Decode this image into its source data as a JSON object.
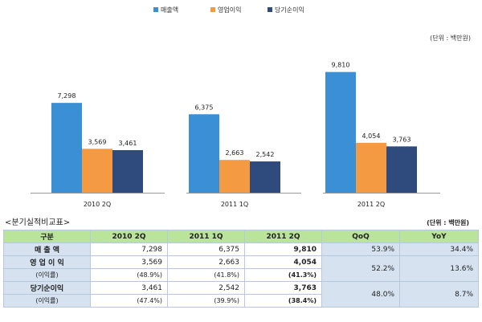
{
  "chart_data": {
    "type": "bar",
    "categories": [
      "2010 2Q",
      "2011 1Q",
      "2011 2Q"
    ],
    "series": [
      {
        "name": "매출액",
        "values": [
          7298,
          6375,
          9810
        ],
        "labels": [
          "7,298",
          "6,375",
          "9,810"
        ],
        "color": "#3b8fd4"
      },
      {
        "name": "영업이익",
        "values": [
          3569,
          2663,
          4054
        ],
        "labels": [
          "3,569",
          "2,663",
          "4,054"
        ],
        "color": "#f39a43"
      },
      {
        "name": "당기순이익",
        "values": [
          3461,
          2542,
          3763
        ],
        "labels": [
          "3,461",
          "2,542",
          "3,763"
        ],
        "color": "#2f4a7d"
      }
    ],
    "unit": "(단위 : 백만원)",
    "ylim": [
      0,
      10700
    ],
    "legend": "top"
  },
  "table": {
    "title": "<분기실적비교표>",
    "unit": "(단위 : 백만원)",
    "headers": [
      "구분",
      "2010 2Q",
      "2011 1Q",
      "2011 2Q",
      "QoQ",
      "YoY"
    ],
    "sales": {
      "label": "매 출 액",
      "values": [
        "7,298",
        "6,375",
        "9,810"
      ],
      "qoq": "53.9%",
      "yoy": "34.4%"
    },
    "op": {
      "label": "영 업 이 익",
      "values": [
        "3,569",
        "2,663",
        "4,054"
      ],
      "margin_label": "(이익률)",
      "margins": [
        "(48.9%)",
        "(41.8%)",
        "(41.3%)"
      ],
      "qoq": "52.2%",
      "yoy": "13.6%"
    },
    "net": {
      "label": "당기순이익",
      "values": [
        "3,461",
        "2,542",
        "3,763"
      ],
      "margin_label": "(이익률)",
      "margins": [
        "(47.4%)",
        "(39.9%)",
        "(38.4%)"
      ],
      "qoq": "48.0%",
      "yoy": "8.7%"
    }
  }
}
